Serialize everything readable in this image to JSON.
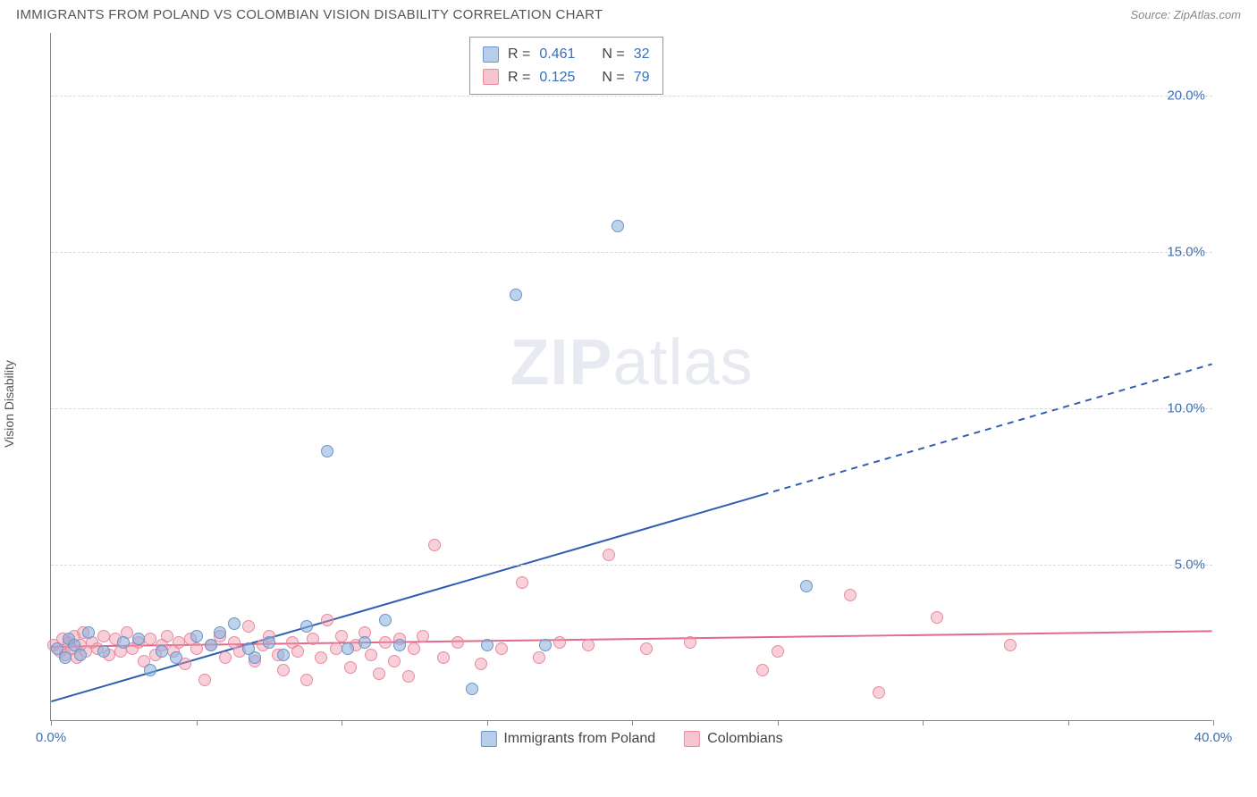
{
  "title": "IMMIGRANTS FROM POLAND VS COLOMBIAN VISION DISABILITY CORRELATION CHART",
  "source": "Source: ZipAtlas.com",
  "y_axis_label": "Vision Disability",
  "watermark_bold": "ZIP",
  "watermark_light": "atlas",
  "chart": {
    "type": "scatter",
    "xlim": [
      0,
      40
    ],
    "ylim": [
      0,
      22
    ],
    "y_ticks": [
      5,
      10,
      15,
      20
    ],
    "y_tick_labels": [
      "5.0%",
      "10.0%",
      "15.0%",
      "20.0%"
    ],
    "x_tick_positions": [
      0,
      5,
      10,
      15,
      20,
      25,
      30,
      35,
      40
    ],
    "x_start_label": "0.0%",
    "x_end_label": "40.0%",
    "background_color": "#ffffff",
    "grid_color": "#d8d8d8",
    "axis_color": "#888888",
    "tick_label_color": "#3a6fb7",
    "point_radius": 7,
    "series": {
      "poland": {
        "label": "Immigrants from Poland",
        "color_fill": "rgba(135,175,220,0.55)",
        "color_stroke": "#6a95c8",
        "R": "0.461",
        "N": "32",
        "trend": {
          "y_at_x0": 0.6,
          "y_at_x40": 11.4,
          "solid_until_x": 24.5,
          "color": "#2e5db0",
          "width": 2
        },
        "points": [
          [
            0.2,
            2.3
          ],
          [
            0.5,
            2.0
          ],
          [
            0.6,
            2.6
          ],
          [
            0.8,
            2.4
          ],
          [
            1.0,
            2.1
          ],
          [
            1.3,
            2.8
          ],
          [
            1.8,
            2.2
          ],
          [
            2.5,
            2.5
          ],
          [
            3.0,
            2.6
          ],
          [
            3.4,
            1.6
          ],
          [
            3.8,
            2.2
          ],
          [
            4.3,
            2.0
          ],
          [
            5.0,
            2.7
          ],
          [
            5.5,
            2.4
          ],
          [
            6.3,
            3.1
          ],
          [
            7.0,
            2.0
          ],
          [
            7.5,
            2.5
          ],
          [
            8.0,
            2.1
          ],
          [
            8.8,
            3.0
          ],
          [
            9.5,
            8.6
          ],
          [
            10.2,
            2.3
          ],
          [
            10.8,
            2.5
          ],
          [
            11.5,
            3.2
          ],
          [
            12.0,
            2.4
          ],
          [
            14.5,
            1.0
          ],
          [
            15.0,
            2.4
          ],
          [
            16.0,
            13.6
          ],
          [
            17.0,
            2.4
          ],
          [
            19.5,
            15.8
          ],
          [
            26.0,
            4.3
          ],
          [
            5.8,
            2.8
          ],
          [
            6.8,
            2.3
          ]
        ]
      },
      "colombians": {
        "label": "Colombians",
        "color_fill": "rgba(240,150,170,0.45)",
        "color_stroke": "#e88aa0",
        "R": "0.125",
        "N": "79",
        "trend": {
          "y_at_x0": 2.35,
          "y_at_x40": 2.85,
          "solid_until_x": 40,
          "color": "#e26a8a",
          "width": 2
        },
        "points": [
          [
            0.1,
            2.4
          ],
          [
            0.3,
            2.2
          ],
          [
            0.4,
            2.6
          ],
          [
            0.5,
            2.1
          ],
          [
            0.6,
            2.5
          ],
          [
            0.7,
            2.3
          ],
          [
            0.8,
            2.7
          ],
          [
            0.9,
            2.0
          ],
          [
            1.0,
            2.4
          ],
          [
            1.1,
            2.8
          ],
          [
            1.2,
            2.2
          ],
          [
            1.4,
            2.5
          ],
          [
            1.6,
            2.3
          ],
          [
            1.8,
            2.7
          ],
          [
            2.0,
            2.1
          ],
          [
            2.2,
            2.6
          ],
          [
            2.4,
            2.2
          ],
          [
            2.6,
            2.8
          ],
          [
            2.8,
            2.3
          ],
          [
            3.0,
            2.5
          ],
          [
            3.2,
            1.9
          ],
          [
            3.4,
            2.6
          ],
          [
            3.6,
            2.1
          ],
          [
            3.8,
            2.4
          ],
          [
            4.0,
            2.7
          ],
          [
            4.2,
            2.2
          ],
          [
            4.4,
            2.5
          ],
          [
            4.6,
            1.8
          ],
          [
            4.8,
            2.6
          ],
          [
            5.0,
            2.3
          ],
          [
            5.3,
            1.3
          ],
          [
            5.5,
            2.4
          ],
          [
            5.8,
            2.7
          ],
          [
            6.0,
            2.0
          ],
          [
            6.3,
            2.5
          ],
          [
            6.5,
            2.2
          ],
          [
            6.8,
            3.0
          ],
          [
            7.0,
            1.9
          ],
          [
            7.3,
            2.4
          ],
          [
            7.5,
            2.7
          ],
          [
            7.8,
            2.1
          ],
          [
            8.0,
            1.6
          ],
          [
            8.3,
            2.5
          ],
          [
            8.5,
            2.2
          ],
          [
            8.8,
            1.3
          ],
          [
            9.0,
            2.6
          ],
          [
            9.3,
            2.0
          ],
          [
            9.5,
            3.2
          ],
          [
            9.8,
            2.3
          ],
          [
            10.0,
            2.7
          ],
          [
            10.3,
            1.7
          ],
          [
            10.5,
            2.4
          ],
          [
            10.8,
            2.8
          ],
          [
            11.0,
            2.1
          ],
          [
            11.3,
            1.5
          ],
          [
            11.5,
            2.5
          ],
          [
            11.8,
            1.9
          ],
          [
            12.0,
            2.6
          ],
          [
            12.3,
            1.4
          ],
          [
            12.5,
            2.3
          ],
          [
            12.8,
            2.7
          ],
          [
            13.2,
            5.6
          ],
          [
            13.5,
            2.0
          ],
          [
            14.0,
            2.5
          ],
          [
            14.8,
            1.8
          ],
          [
            15.5,
            2.3
          ],
          [
            16.2,
            4.4
          ],
          [
            16.8,
            2.0
          ],
          [
            17.5,
            2.5
          ],
          [
            18.5,
            2.4
          ],
          [
            19.2,
            5.3
          ],
          [
            20.5,
            2.3
          ],
          [
            22.0,
            2.5
          ],
          [
            24.5,
            1.6
          ],
          [
            25.0,
            2.2
          ],
          [
            27.5,
            4.0
          ],
          [
            28.5,
            0.9
          ],
          [
            30.5,
            3.3
          ],
          [
            33.0,
            2.4
          ]
        ]
      }
    }
  },
  "legend_top": {
    "r_label": "R =",
    "n_label": "N ="
  }
}
